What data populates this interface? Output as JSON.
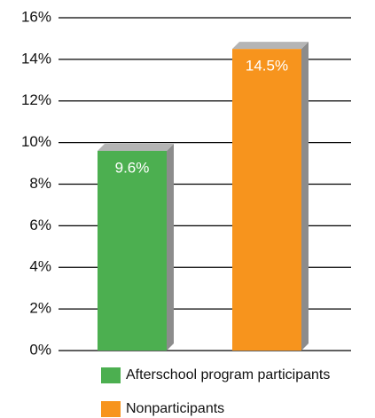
{
  "chart_data": {
    "type": "bar",
    "categories": [
      null
    ],
    "series": [
      {
        "name": "Afterschool program participants",
        "color": "#4caf50",
        "values": [
          9.6
        ],
        "value_labels": [
          "9.6%"
        ]
      },
      {
        "name": "Nonparticipants",
        "color": "#f7941d",
        "values": [
          14.5
        ],
        "value_labels": [
          "14.5%"
        ]
      }
    ],
    "ylim": [
      0,
      16
    ],
    "yticks": [
      {
        "value": 0,
        "label": "0%"
      },
      {
        "value": 2,
        "label": "2%"
      },
      {
        "value": 4,
        "label": "4%"
      },
      {
        "value": 6,
        "label": "6%"
      },
      {
        "value": 8,
        "label": "8%"
      },
      {
        "value": 10,
        "label": "10%"
      },
      {
        "value": 12,
        "label": "12%"
      },
      {
        "value": 14,
        "label": "14%"
      },
      {
        "value": 16,
        "label": "16%"
      }
    ],
    "grid": true
  }
}
